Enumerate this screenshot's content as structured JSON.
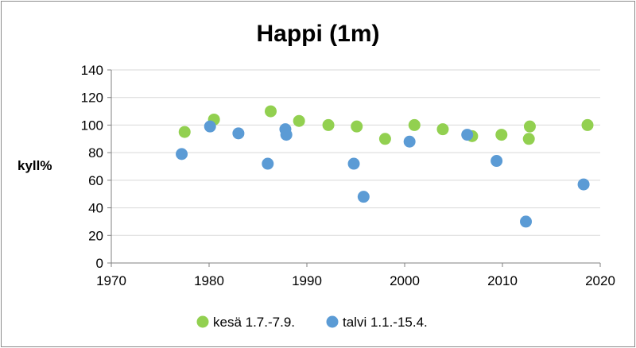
{
  "chart_data": {
    "type": "scatter",
    "title": "Happi (1m)",
    "xlabel": "",
    "ylabel": "kyll%",
    "xlim": [
      1970,
      2020
    ],
    "ylim": [
      0,
      140
    ],
    "xticks": [
      1970,
      1980,
      1990,
      2000,
      2010,
      2020
    ],
    "yticks": [
      0,
      20,
      40,
      60,
      80,
      100,
      120,
      140
    ],
    "grid": "horizontal",
    "legend_position": "bottom",
    "series": [
      {
        "name": "kesä 1.7.-7.9.",
        "color": "#92d050",
        "points": [
          {
            "x": 1977.5,
            "y": 95
          },
          {
            "x": 1980.5,
            "y": 104
          },
          {
            "x": 1986.3,
            "y": 110
          },
          {
            "x": 1989.2,
            "y": 103
          },
          {
            "x": 1992.2,
            "y": 100
          },
          {
            "x": 1995.1,
            "y": 99
          },
          {
            "x": 1998.0,
            "y": 90
          },
          {
            "x": 2001.0,
            "y": 100
          },
          {
            "x": 2003.9,
            "y": 97
          },
          {
            "x": 2006.9,
            "y": 92
          },
          {
            "x": 2009.9,
            "y": 93
          },
          {
            "x": 2012.8,
            "y": 99
          },
          {
            "x": 2012.7,
            "y": 90
          },
          {
            "x": 2018.7,
            "y": 100
          }
        ]
      },
      {
        "name": "talvi 1.1.-15.4.",
        "color": "#5b9bd5",
        "points": [
          {
            "x": 1977.2,
            "y": 79
          },
          {
            "x": 1980.1,
            "y": 99
          },
          {
            "x": 1983.0,
            "y": 94
          },
          {
            "x": 1986.0,
            "y": 72
          },
          {
            "x": 1987.8,
            "y": 97
          },
          {
            "x": 1987.9,
            "y": 93
          },
          {
            "x": 1994.8,
            "y": 72
          },
          {
            "x": 1995.8,
            "y": 48
          },
          {
            "x": 2000.5,
            "y": 88
          },
          {
            "x": 2006.4,
            "y": 93
          },
          {
            "x": 2009.4,
            "y": 74
          },
          {
            "x": 2012.4,
            "y": 30
          },
          {
            "x": 2018.3,
            "y": 57
          }
        ]
      }
    ]
  }
}
